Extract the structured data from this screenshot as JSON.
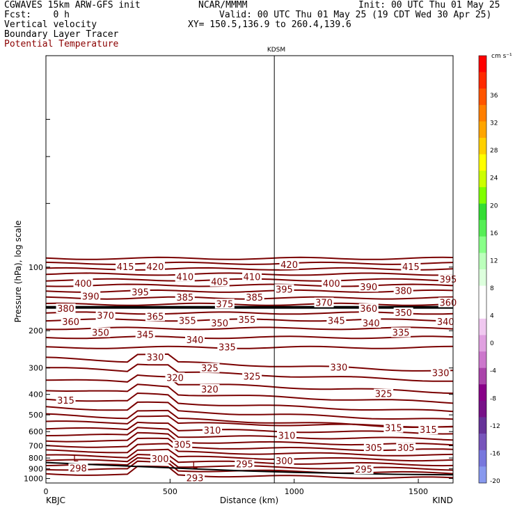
{
  "header": {
    "model_title": "CGWAVES 15km ARW-GFS init",
    "org": "NCAR/MMMM",
    "init": "Init: 00 UTC Thu 01 May 25",
    "fcst": "Fcst:    0 h",
    "valid": "Valid: 00 UTC Thu 01 May 25 (19 CDT Wed 30 Apr 25)",
    "field1": "Vertical velocity",
    "field2": "Boundary Layer Tracer",
    "field3": "Potential Temperature",
    "xy": "XY= 150.5,136.9 to 260.4,139.6"
  },
  "colors": {
    "contour": "#7a0000",
    "tropopause": "#000000",
    "terrain": "#000000"
  },
  "chart_data": {
    "type": "line",
    "x_range": [
      0,
      1640
    ],
    "xlabel": "Distance (km)",
    "ylabel": "Pressure (hPa), log scale",
    "x_ticks": [
      {
        "value": 0,
        "label": "0"
      },
      {
        "value": 500,
        "label": "500"
      },
      {
        "value": 1000,
        "label": "1000"
      },
      {
        "value": 1500,
        "label": "1500"
      }
    ],
    "y_ticks": [
      100,
      200,
      300,
      400,
      500,
      600,
      700,
      800,
      900,
      1000
    ],
    "y_range_hpa": [
      10,
      1050
    ],
    "location_left": "KBJC",
    "location_right": "KIND",
    "marker_label": "KDSM",
    "marker_x": 920,
    "terrain_hpa": [
      [
        0,
        840
      ],
      [
        200,
        860
      ],
      [
        400,
        880
      ],
      [
        600,
        900
      ],
      [
        800,
        920
      ],
      [
        1000,
        935
      ],
      [
        1200,
        945
      ],
      [
        1400,
        955
      ],
      [
        1640,
        960
      ]
    ],
    "tropopause_hpa": 155,
    "theta_labels": [
      {
        "x": 80,
        "p": 158,
        "v": "380"
      },
      {
        "x": 180,
        "p": 138,
        "v": "390"
      },
      {
        "x": 150,
        "p": 120,
        "v": "400"
      },
      {
        "x": 320,
        "p": 100,
        "v": "415"
      },
      {
        "x": 440,
        "p": 100,
        "v": "420"
      },
      {
        "x": 560,
        "p": 112,
        "v": "410"
      },
      {
        "x": 700,
        "p": 118,
        "v": "405"
      },
      {
        "x": 830,
        "p": 112,
        "v": "410"
      },
      {
        "x": 980,
        "p": 98,
        "v": "420"
      },
      {
        "x": 1470,
        "p": 100,
        "v": "415"
      },
      {
        "x": 1620,
        "p": 115,
        "v": "395"
      },
      {
        "x": 380,
        "p": 132,
        "v": "395"
      },
      {
        "x": 240,
        "p": 170,
        "v": "370"
      },
      {
        "x": 440,
        "p": 172,
        "v": "365"
      },
      {
        "x": 560,
        "p": 140,
        "v": "385"
      },
      {
        "x": 720,
        "p": 150,
        "v": "375"
      },
      {
        "x": 840,
        "p": 140,
        "v": "385"
      },
      {
        "x": 960,
        "p": 128,
        "v": "395"
      },
      {
        "x": 1150,
        "p": 120,
        "v": "400"
      },
      {
        "x": 1300,
        "p": 125,
        "v": "390"
      },
      {
        "x": 1440,
        "p": 130,
        "v": "380"
      },
      {
        "x": 1120,
        "p": 148,
        "v": "370"
      },
      {
        "x": 1300,
        "p": 158,
        "v": "360"
      },
      {
        "x": 1620,
        "p": 148,
        "v": "360"
      },
      {
        "x": 1440,
        "p": 165,
        "v": "350"
      },
      {
        "x": 100,
        "p": 182,
        "v": "360"
      },
      {
        "x": 220,
        "p": 205,
        "v": "350"
      },
      {
        "x": 400,
        "p": 210,
        "v": "345"
      },
      {
        "x": 570,
        "p": 180,
        "v": "355"
      },
      {
        "x": 700,
        "p": 185,
        "v": "350"
      },
      {
        "x": 810,
        "p": 178,
        "v": "355"
      },
      {
        "x": 1170,
        "p": 180,
        "v": "345"
      },
      {
        "x": 1310,
        "p": 185,
        "v": "340"
      },
      {
        "x": 1610,
        "p": 182,
        "v": "340"
      },
      {
        "x": 600,
        "p": 222,
        "v": "340"
      },
      {
        "x": 730,
        "p": 240,
        "v": "335"
      },
      {
        "x": 1430,
        "p": 205,
        "v": "335"
      },
      {
        "x": 440,
        "p": 268,
        "v": "330"
      },
      {
        "x": 1180,
        "p": 300,
        "v": "330"
      },
      {
        "x": 1590,
        "p": 318,
        "v": "330"
      },
      {
        "x": 660,
        "p": 302,
        "v": "325"
      },
      {
        "x": 830,
        "p": 330,
        "v": "325"
      },
      {
        "x": 1360,
        "p": 400,
        "v": "325"
      },
      {
        "x": 520,
        "p": 335,
        "v": "320"
      },
      {
        "x": 660,
        "p": 380,
        "v": "320"
      },
      {
        "x": 80,
        "p": 430,
        "v": "315"
      },
      {
        "x": 1400,
        "p": 580,
        "v": "315"
      },
      {
        "x": 1540,
        "p": 590,
        "v": "315"
      },
      {
        "x": 670,
        "p": 595,
        "v": "310"
      },
      {
        "x": 970,
        "p": 630,
        "v": "310"
      },
      {
        "x": 550,
        "p": 695,
        "v": "305"
      },
      {
        "x": 1320,
        "p": 720,
        "v": "305"
      },
      {
        "x": 1450,
        "p": 720,
        "v": "305"
      },
      {
        "x": 460,
        "p": 810,
        "v": "300"
      },
      {
        "x": 960,
        "p": 830,
        "v": "300"
      },
      {
        "x": 130,
        "p": 900,
        "v": "298"
      },
      {
        "x": 800,
        "p": 860,
        "v": "295"
      },
      {
        "x": 1280,
        "p": 910,
        "v": "295"
      },
      {
        "x": 600,
        "p": 1000,
        "v": "293"
      }
    ],
    "low_labels": [
      {
        "x": 120,
        "p": 805,
        "v": "L"
      },
      {
        "x": 600,
        "p": 870,
        "v": "L"
      }
    ],
    "colorbar": {
      "units": "cm s⁻¹",
      "labels": [
        "36",
        "32",
        "28",
        "24",
        "20",
        "16",
        "12",
        "8",
        "4",
        "0",
        "-4",
        "-8",
        "-12",
        "-16",
        "-20"
      ],
      "colors": [
        "#ff0000",
        "#ff2a00",
        "#ff5500",
        "#ff7f00",
        "#ffa500",
        "#ffd000",
        "#ffff00",
        "#ccff00",
        "#7fff00",
        "#33dd33",
        "#55ee55",
        "#88ff88",
        "#bbffbb",
        "#ddffdd",
        "#ffffff",
        "#ffffff",
        "#f0c8f0",
        "#e0a0e0",
        "#cc77cc",
        "#aa44aa",
        "#880088",
        "#771188",
        "#663399",
        "#7755bb",
        "#7777dd",
        "#8899ee"
      ]
    }
  }
}
